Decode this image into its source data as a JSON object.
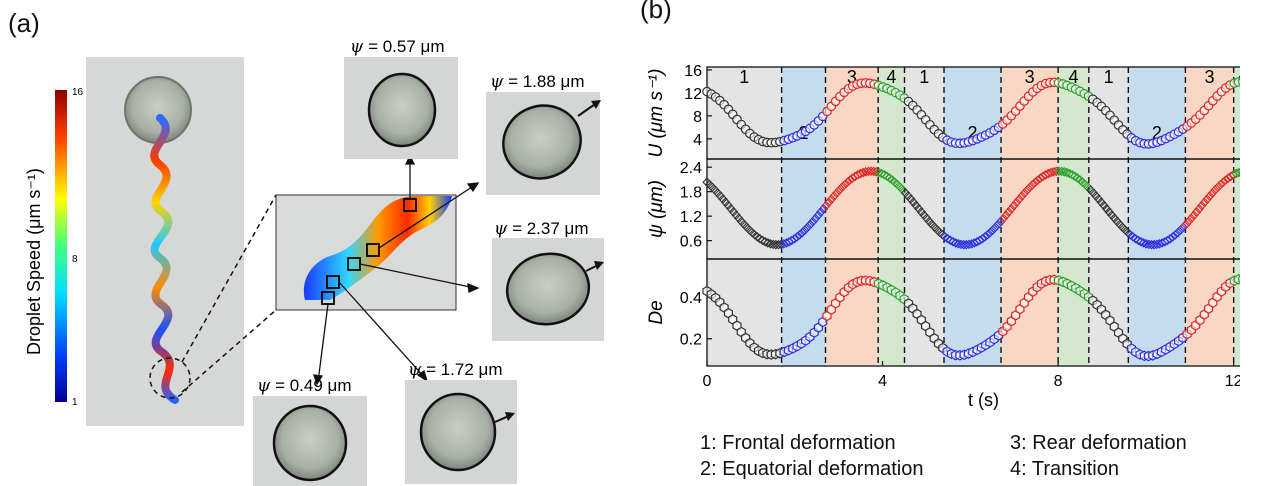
{
  "panel_a": {
    "label": "(a)",
    "colorbar": {
      "title": "Droplet Speed (μm s⁻¹)",
      "ticks": [
        "16",
        "8",
        "1"
      ],
      "values": [
        16,
        8,
        1
      ]
    },
    "insets": [
      {
        "psi_label": "ψ",
        "value_text": " = 0.57 μm",
        "arrow": false
      },
      {
        "psi_label": "ψ",
        "value_text": " = 1.88 μm",
        "arrow": true
      },
      {
        "psi_label": "ψ",
        "value_text": " = 2.37 μm",
        "arrow": true
      },
      {
        "psi_label": "ψ",
        "value_text": " = 1.72 μm",
        "arrow": true
      },
      {
        "psi_label": "ψ",
        "value_text": " = 0.49 μm",
        "arrow": false
      }
    ]
  },
  "panel_b": {
    "label": "(b)"
  },
  "chart_data": {
    "type": "scatter",
    "xlabel": "t (s)",
    "xlim": [
      0,
      12.6
    ],
    "xticks": [
      0,
      4,
      8,
      12
    ],
    "phase_boundaries": [
      0,
      1.7,
      2.7,
      3.9,
      4.5,
      5.4,
      6.7,
      8.0,
      8.7,
      9.6,
      10.9,
      12.0,
      12.4,
      12.6
    ],
    "phase_sequence": [
      1,
      2,
      3,
      4,
      1,
      2,
      3,
      4,
      1,
      2,
      3,
      4,
      1
    ],
    "phase_numbers": [
      "1",
      "2",
      "3",
      "4",
      "1",
      "2",
      "3",
      "4",
      "1",
      "2",
      "3",
      "4"
    ],
    "phase_colors": {
      "1": "#e4e4e4",
      "2": "#c5dcef",
      "3": "#f8d8c4",
      "4": "#d3e8cc"
    },
    "marker_colors": {
      "1": "#333333",
      "2": "#2f2fe0",
      "3": "#e02525",
      "4": "#2aa02a"
    },
    "period": 4.28,
    "subplots": [
      {
        "ylabel": "U (μm s⁻¹)",
        "yticks": [
          4,
          8,
          12,
          16
        ],
        "ylim": [
          0.5,
          16.5
        ],
        "marker": "circle",
        "min": 3.2,
        "max": 13.8
      },
      {
        "ylabel": "ψ (μm)",
        "yticks": [
          0.6,
          1.2,
          1.8,
          2.4
        ],
        "ylim": [
          0.15,
          2.6
        ],
        "marker": "diamond",
        "min": 0.5,
        "max": 2.3
      },
      {
        "ylabel": "De",
        "yticks": [
          0.2,
          0.4
        ],
        "ylim": [
          0.07,
          0.58
        ],
        "marker": "hexagon",
        "min": 0.12,
        "max": 0.48
      }
    ]
  },
  "legend": {
    "items": [
      "1: Frontal deformation",
      "2: Equatorial deformation",
      "3: Rear deformation",
      "4: Transition"
    ]
  }
}
